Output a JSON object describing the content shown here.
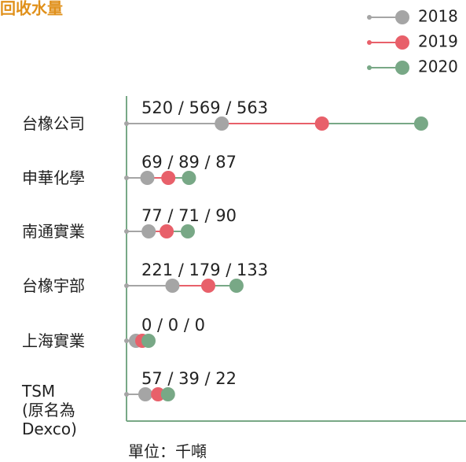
{
  "chart_data": {
    "type": "dot",
    "title": "回收水量",
    "unit_note": "單位：千噸",
    "categories": [
      "台橡公司",
      "申華化學",
      "南通實業",
      "台橡宇部",
      "上海實業",
      "TSM\n(原名為\nDexco)"
    ],
    "series": [
      {
        "name": "2018",
        "color": "#a5a5a5",
        "values": [
          520,
          69,
          77,
          221,
          0,
          57
        ]
      },
      {
        "name": "2019",
        "color": "#e8606a",
        "values": [
          569,
          89,
          71,
          179,
          0,
          39
        ]
      },
      {
        "name": "2020",
        "color": "#78a886",
        "values": [
          563,
          87,
          90,
          133,
          0,
          22
        ]
      }
    ],
    "value_labels": [
      "520 / 569 / 563",
      "69 / 89 / 87",
      "77 / 71 / 90",
      "221 / 179 / 133",
      "0 / 0 / 0",
      "57 / 39 / 22"
    ],
    "legend": "top-right"
  }
}
